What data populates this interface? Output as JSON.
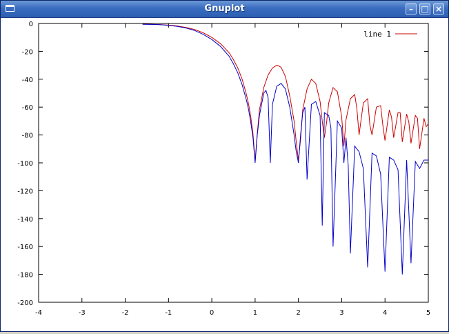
{
  "window": {
    "title": "Gnuplot",
    "minimize_glyph": "–",
    "maximize_glyph": "□",
    "close_glyph": "×",
    "app_icon": "window-icon",
    "titlebar_color": "#3a6dc0"
  },
  "chart_data": {
    "type": "line",
    "title": "",
    "xlabel": "",
    "ylabel": "",
    "xlim": [
      -4,
      5
    ],
    "ylim": [
      -200,
      0
    ],
    "x_ticks": [
      "-4",
      "-3",
      "-2",
      "-1",
      "0",
      "1",
      "2",
      "3",
      "4",
      "5"
    ],
    "y_ticks": [
      "0",
      "-20",
      "-40",
      "-60",
      "-80",
      "-100",
      "-120",
      "-140",
      "-160",
      "-180",
      "-200"
    ],
    "grid": false,
    "legend_position": "top-right",
    "legend_entries": [
      "line 1"
    ],
    "series": [
      {
        "name": "line 1",
        "color": "#cc0000",
        "x": [
          -1.6,
          -1.4,
          -1.2,
          -1.0,
          -0.8,
          -0.6,
          -0.4,
          -0.2,
          0.0,
          0.2,
          0.4,
          0.5,
          0.6,
          0.7,
          0.8,
          0.85,
          0.9,
          0.95,
          1.0,
          1.05,
          1.1,
          1.2,
          1.3,
          1.4,
          1.5,
          1.55,
          1.6,
          1.7,
          1.8,
          1.9,
          1.95,
          2.0,
          2.05,
          2.1,
          2.2,
          2.3,
          2.4,
          2.5,
          2.55,
          2.6,
          2.65,
          2.7,
          2.8,
          2.9,
          3.0,
          3.05,
          3.1,
          3.2,
          3.3,
          3.35,
          3.4,
          3.5,
          3.6,
          3.65,
          3.7,
          3.8,
          3.9,
          3.95,
          4.0,
          4.1,
          4.15,
          4.2,
          4.3,
          4.35,
          4.4,
          4.5,
          4.55,
          4.6,
          4.7,
          4.75,
          4.8,
          4.9,
          4.95,
          5.0
        ],
        "y": [
          -0.5,
          -0.6,
          -0.8,
          -1.2,
          -1.8,
          -2.8,
          -4.3,
          -6.7,
          -10,
          -14.5,
          -21,
          -26,
          -32,
          -40,
          -51,
          -58,
          -67,
          -79,
          -99,
          -79,
          -62,
          -46,
          -37,
          -32,
          -30,
          -30.5,
          -31.5,
          -38,
          -52,
          -70,
          -85,
          -98,
          -83,
          -62,
          -47,
          -40,
          -43,
          -56,
          -70,
          -82,
          -71,
          -57,
          -46,
          -49,
          -67,
          -88,
          -69,
          -54,
          -51,
          -61,
          -80,
          -57,
          -54,
          -73,
          -80,
          -60,
          -59,
          -73,
          -84,
          -62,
          -67,
          -82,
          -64,
          -64,
          -85,
          -65,
          -71,
          -86,
          -66,
          -68,
          -90,
          -68,
          -74,
          -72
        ]
      },
      {
        "name": "",
        "color": "#0000cc",
        "x": [
          -1.6,
          -1.4,
          -1.2,
          -1.0,
          -0.8,
          -0.6,
          -0.4,
          -0.2,
          0.0,
          0.2,
          0.4,
          0.5,
          0.6,
          0.7,
          0.8,
          0.85,
          0.9,
          0.95,
          1.0,
          1.05,
          1.1,
          1.2,
          1.25,
          1.3,
          1.35,
          1.4,
          1.5,
          1.6,
          1.7,
          1.8,
          1.9,
          1.95,
          2.0,
          2.05,
          2.1,
          2.15,
          2.2,
          2.3,
          2.4,
          2.45,
          2.5,
          2.55,
          2.6,
          2.7,
          2.75,
          2.8,
          2.9,
          3.0,
          3.05,
          3.1,
          3.15,
          3.2,
          3.3,
          3.4,
          3.5,
          3.6,
          3.7,
          3.8,
          3.9,
          4.0,
          4.1,
          4.2,
          4.3,
          4.4,
          4.5,
          4.6,
          4.7,
          4.8,
          4.9,
          5.0
        ],
        "y": [
          -0.6,
          -0.7,
          -0.9,
          -1.4,
          -2.1,
          -3.2,
          -5,
          -7.8,
          -11.5,
          -16.5,
          -23.5,
          -29,
          -35.5,
          -44,
          -55,
          -62,
          -71,
          -82,
          -100,
          -80,
          -66,
          -50,
          -48,
          -53,
          -100,
          -58,
          -45,
          -43,
          -47,
          -60,
          -80,
          -92,
          -100,
          -80,
          -64,
          -60,
          -112,
          -58,
          -56,
          -61,
          -66,
          -145,
          -64,
          -66,
          -75,
          -160,
          -70,
          -75,
          -100,
          -82,
          -102,
          -165,
          -88,
          -92,
          -104,
          -175,
          -93,
          -95,
          -108,
          -178,
          -96,
          -98,
          -105,
          -180,
          -98,
          -172,
          -99,
          -104,
          -98,
          -98
        ]
      }
    ]
  }
}
